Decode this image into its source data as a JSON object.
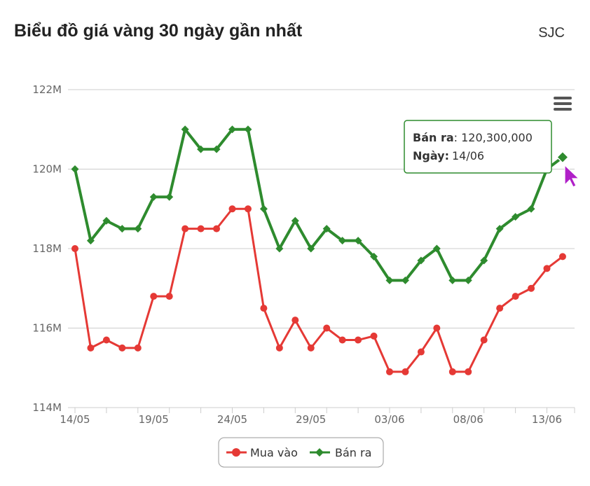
{
  "header": {
    "title": "Biểu đồ giá vàng 30 ngày gần nhất",
    "brand": "SJC"
  },
  "chart_data": {
    "type": "line",
    "x": [
      "14/05",
      "15/05",
      "16/05",
      "17/05",
      "18/05",
      "19/05",
      "20/05",
      "21/05",
      "22/05",
      "23/05",
      "24/05",
      "25/05",
      "26/05",
      "27/05",
      "28/05",
      "29/05",
      "30/05",
      "31/05",
      "01/06",
      "02/06",
      "03/06",
      "04/06",
      "05/06",
      "06/06",
      "07/06",
      "08/06",
      "09/06",
      "10/06",
      "11/06",
      "12/06",
      "13/06",
      "14/06"
    ],
    "x_tick_labels": [
      "14/05",
      "19/05",
      "24/05",
      "29/05",
      "03/06",
      "08/06",
      "13/06"
    ],
    "y_tick_labels": [
      "114M",
      "116M",
      "118M",
      "120M",
      "122M"
    ],
    "ylim": [
      114000000,
      122000000
    ],
    "series": [
      {
        "name": "Mua vào",
        "color": "#e53935",
        "marker": "circle",
        "values": [
          118000000,
          115500000,
          115700000,
          115500000,
          115500000,
          116800000,
          116800000,
          118500000,
          118500000,
          118500000,
          119000000,
          119000000,
          116500000,
          115500000,
          116200000,
          115500000,
          116000000,
          115700000,
          115700000,
          115800000,
          114900000,
          114900000,
          115400000,
          116000000,
          114900000,
          114900000,
          115700000,
          116500000,
          116800000,
          117000000,
          117500000,
          117800000
        ]
      },
      {
        "name": "Bán ra",
        "color": "#2e8b2e",
        "marker": "diamond",
        "values": [
          120000000,
          118200000,
          118700000,
          118500000,
          118500000,
          119300000,
          119300000,
          121000000,
          120500000,
          120500000,
          121000000,
          121000000,
          119000000,
          118000000,
          118700000,
          118000000,
          118500000,
          118200000,
          118200000,
          117800000,
          117200000,
          117200000,
          117700000,
          118000000,
          117200000,
          117200000,
          117700000,
          118500000,
          118800000,
          119000000,
          120000000,
          120300000
        ]
      }
    ],
    "grid": true,
    "legend": "bottom-center",
    "tooltip": {
      "series_label": "Bán ra",
      "value_text": "120,300,000",
      "date_label": "Ngày:",
      "date_value": "14/06",
      "point_index": 31
    },
    "menu_icon": "hamburger-menu-icon",
    "cursor_icon": "pointer-cursor-icon"
  }
}
